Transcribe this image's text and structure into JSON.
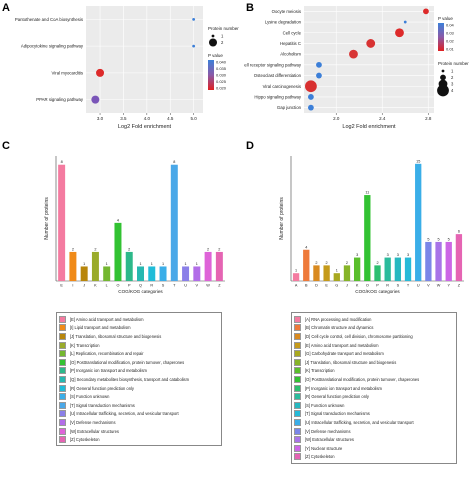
{
  "panels": {
    "a": "A",
    "b": "B",
    "c": "C",
    "d": "D"
  },
  "chart_data": [
    {
      "type": "scatter",
      "panel": "A",
      "categories": [
        "Pantothenate and CoA biosynthesis",
        "Adipocytokine signaling pathway",
        "Viral myocarditis",
        "PPAR signaling pathway"
      ],
      "x": [
        5.0,
        5.0,
        3.0,
        2.9
      ],
      "pvalue": [
        0.04,
        0.04,
        0.022,
        0.03
      ],
      "protein_number": [
        1,
        1,
        2,
        2
      ],
      "point_colors": [
        "#3c7fd8",
        "#3c7fd8",
        "#dd2a2a",
        "#7a55b8"
      ],
      "xlabel": "Log2 Fold enrichment",
      "xticks": [
        "3.0",
        "3.5",
        "4.0",
        "4.5",
        "5.0"
      ],
      "xlim": [
        2.7,
        5.2
      ],
      "size_legend_title": "Protein number",
      "size_legend": [
        "1",
        "2"
      ],
      "color_legend_title": "P value",
      "color_ticks": [
        "0.040",
        "0.035",
        "0.030",
        "0.025",
        "0.020"
      ]
    },
    {
      "type": "scatter",
      "panel": "B",
      "categories": [
        "Oocyte meiosis",
        "Lysine degradation",
        "Cell cycle",
        "Hepatitis C",
        "Alcoholism",
        "T cell receptor signaling pathway",
        "Osteoclast differentiation",
        "Viral carcinogenesis",
        "Hippo signaling pathway",
        "Gap junction"
      ],
      "x": [
        2.78,
        2.6,
        2.55,
        2.3,
        2.15,
        1.85,
        1.85,
        1.78,
        1.78,
        1.78
      ],
      "pvalue": [
        0.005,
        0.04,
        0.008,
        0.01,
        0.012,
        0.03,
        0.03,
        0.008,
        0.03,
        0.03
      ],
      "protein_number": [
        2,
        1,
        3,
        3,
        3,
        2,
        2,
        4,
        2,
        2
      ],
      "point_colors": [
        "#dd2a2a",
        "#3c7fd8",
        "#dd2a2a",
        "#d83232",
        "#d83535",
        "#3c7fd8",
        "#3c7fd8",
        "#d83030",
        "#3c7fd8",
        "#3c7fd8"
      ],
      "xlabel": "Log2 Fold enrichment",
      "xticks": [
        "2.0",
        "2.4",
        "2.8"
      ],
      "xlim": [
        1.72,
        2.85
      ],
      "size_legend_title": "Protein number",
      "size_legend": [
        "1",
        "2",
        "3",
        "4"
      ],
      "color_legend_title": "P value",
      "color_ticks": [
        "0.04",
        "0.03",
        "0.02",
        "0.01"
      ]
    },
    {
      "type": "bar",
      "panel": "C",
      "categories": [
        "E",
        "I",
        "J",
        "K",
        "L",
        "O",
        "P",
        "Q",
        "R",
        "S",
        "T",
        "U",
        "V",
        "W",
        "Z"
      ],
      "values": [
        8,
        2,
        1,
        2,
        1,
        4,
        2,
        1,
        1,
        1,
        8,
        1,
        1,
        2,
        2
      ],
      "colors": [
        "#f47ba0",
        "#f08a18",
        "#b8860b",
        "#9aab2a",
        "#74b730",
        "#32c232",
        "#2db88a",
        "#27b8b0",
        "#20bcd8",
        "#3aaee8",
        "#4aa8e8",
        "#8a7fe8",
        "#b26de8",
        "#de63d8",
        "#e564b3"
      ],
      "value_labels": [
        "8",
        "2",
        "1",
        "2",
        "1",
        "4",
        "2",
        "1",
        "1",
        "1",
        "8",
        "1",
        "1",
        "2",
        "2"
      ],
      "ylim": [
        0,
        8.6
      ],
      "ylabel": "Number of proteins",
      "xlabel": "COG/KOG categories",
      "legend": [
        {
          "label": "[E] Amino acid transport and metabolism",
          "color": "#f47ba0"
        },
        {
          "label": "[I] Lipid transport and metabolism",
          "color": "#f08a18"
        },
        {
          "label": "[J] Translation, ribosomal structure and biogenesis",
          "color": "#b8860b"
        },
        {
          "label": "[K] Transcription",
          "color": "#9aab2a"
        },
        {
          "label": "[L] Replication, recombination and repair",
          "color": "#74b730"
        },
        {
          "label": "[O] Posttranslational modification, protein turnover, chaperones",
          "color": "#32c232"
        },
        {
          "label": "[P] Inorganic ion transport and metabolism",
          "color": "#2db88a"
        },
        {
          "label": "[Q] Secondary metabolites biosynthesis, transport and catabolism",
          "color": "#27b8b0"
        },
        {
          "label": "[R] General function prediction only",
          "color": "#20bcd8"
        },
        {
          "label": "[S] Function unknown",
          "color": "#3aaee8"
        },
        {
          "label": "[T] Signal transduction mechanisms",
          "color": "#4aa8e8"
        },
        {
          "label": "[U] Intracellular trafficking, secretion, and vesicular transport",
          "color": "#8a7fe8"
        },
        {
          "label": "[V] Defense mechanisms",
          "color": "#b26de8"
        },
        {
          "label": "[W] Extracellular structures",
          "color": "#de63d8"
        },
        {
          "label": "[Z] Cytoskeleton",
          "color": "#e564b3"
        }
      ]
    },
    {
      "type": "bar",
      "panel": "D",
      "categories": [
        "A",
        "B",
        "D",
        "E",
        "G",
        "J",
        "K",
        "O",
        "P",
        "R",
        "S",
        "T",
        "U",
        "V",
        "W",
        "Y",
        "Z"
      ],
      "values": [
        1,
        4,
        2,
        2,
        1,
        2,
        3,
        11,
        2,
        3,
        3,
        3,
        15,
        5,
        5,
        5,
        6
      ],
      "colors": [
        "#f47ba0",
        "#ee7a3a",
        "#d98a20",
        "#c59a1a",
        "#a8a820",
        "#86b428",
        "#5abf2c",
        "#32c232",
        "#2cbf70",
        "#2bbb9c",
        "#27b8c0",
        "#26bad8",
        "#3aaee8",
        "#7a86e8",
        "#a874e8",
        "#cc66e6",
        "#e564b3"
      ],
      "value_labels": [
        "1",
        "4",
        "2",
        "2",
        "1",
        "2",
        "3",
        "11",
        "2",
        "3",
        "3",
        "3",
        "15",
        "5",
        "5",
        "5",
        "6"
      ],
      "ylim": [
        0,
        16
      ],
      "ylabel": "Number of proteins",
      "xlabel": "COG/KOG categories",
      "legend": [
        {
          "label": "[A] RNA processing and modification",
          "color": "#f47ba0"
        },
        {
          "label": "[B] Chromatin structure and dynamics",
          "color": "#ee7a3a"
        },
        {
          "label": "[D] Cell cycle control, cell division, chromosome partitioning",
          "color": "#d98a20"
        },
        {
          "label": "[E] Amino acid transport and metabolism",
          "color": "#c59a1a"
        },
        {
          "label": "[G] Carbohydrate transport and metabolism",
          "color": "#a8a820"
        },
        {
          "label": "[J] Translation, ribosomal structure and biogenesis",
          "color": "#86b428"
        },
        {
          "label": "[K] Transcription",
          "color": "#5abf2c"
        },
        {
          "label": "[O] Posttranslational modification, protein turnover, chaperones",
          "color": "#32c232"
        },
        {
          "label": "[P] Inorganic ion transport and metabolism",
          "color": "#2cbf70"
        },
        {
          "label": "[R] General function prediction only",
          "color": "#2bbb9c"
        },
        {
          "label": "[S] Function unknown",
          "color": "#27b8c0"
        },
        {
          "label": "[T] Signal transduction mechanisms",
          "color": "#26bad8"
        },
        {
          "label": "[U] Intracellular trafficking, secretion, and vesicular transport",
          "color": "#3aaee8"
        },
        {
          "label": "[V] Defense mechanisms",
          "color": "#7a86e8"
        },
        {
          "label": "[W] Extracellular structures",
          "color": "#a874e8"
        },
        {
          "label": "[Y] Nuclear structure",
          "color": "#cc66e6"
        },
        {
          "label": "[Z] Cytoskeleton",
          "color": "#e564b3"
        }
      ]
    }
  ]
}
